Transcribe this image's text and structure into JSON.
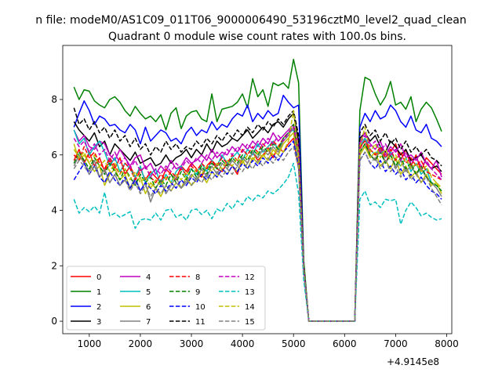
{
  "figure": {
    "suptitle": "n file: modeM0/AS1C09_011T06_9000006490_53196cztM0_level2_quad_clean",
    "title": "Quadrant 0 module wise count rates with 100.0s bins.",
    "offset_text": "+4.9145e8"
  },
  "chart_data": {
    "type": "line",
    "title": "Quadrant 0 module wise count rates with 100.0s bins.",
    "xlabel": "",
    "ylabel": "",
    "x_offset": 491450000,
    "xlim": [
      480,
      8100
    ],
    "ylim": [
      -0.45,
      9.95
    ],
    "xticks": [
      1000,
      2000,
      3000,
      4000,
      5000,
      6000,
      7000,
      8000
    ],
    "xtick_labels": [
      "1000",
      "2000",
      "3000",
      "4000",
      "5000",
      "6000",
      "7000",
      "8000"
    ],
    "yticks": [
      0,
      2,
      4,
      6,
      8
    ],
    "ytick_labels": [
      "0",
      "2",
      "4",
      "6",
      "8"
    ],
    "grid": false,
    "legend_placement": "lower-left",
    "legend_ncol": 4,
    "x": [
      700,
      800,
      900,
      1000,
      1100,
      1200,
      1300,
      1400,
      1500,
      1600,
      1700,
      1800,
      1900,
      2000,
      2100,
      2200,
      2300,
      2400,
      2500,
      2600,
      2700,
      2800,
      2900,
      3000,
      3100,
      3200,
      3300,
      3400,
      3500,
      3600,
      3700,
      3800,
      3900,
      4000,
      4100,
      4200,
      4300,
      4400,
      4500,
      4600,
      4700,
      4800,
      4900,
      5000,
      5100,
      5200,
      5300,
      6200,
      6300,
      6400,
      6500,
      6600,
      6700,
      6800,
      6900,
      7000,
      7100,
      7200,
      7300,
      7400,
      7500,
      7600,
      7700,
      7800,
      7900
    ],
    "series": [
      {
        "name": "0",
        "color": "#ff0000",
        "dash": "solid",
        "values": [
          5.8,
          6.2,
          5.7,
          6.1,
          5.6,
          5.9,
          5.4,
          5.8,
          5.5,
          5.9,
          5.3,
          5.6,
          5.2,
          5.5,
          5.1,
          5.4,
          5.2,
          5.0,
          5.5,
          5.3,
          5.1,
          5.6,
          5.4,
          5.7,
          5.5,
          5.2,
          5.6,
          5.8,
          5.5,
          5.4,
          5.7,
          5.6,
          5.3,
          5.9,
          5.7,
          6.1,
          5.8,
          6.0,
          6.2,
          5.9,
          6.3,
          6.1,
          6.4,
          6.6,
          5.5,
          1.8,
          0,
          0,
          6.2,
          6.6,
          6.0,
          5.8,
          6.3,
          5.7,
          6.1,
          6.4,
          5.8,
          6.2,
          5.6,
          6.0,
          5.4,
          5.9,
          5.7,
          5.5,
          5.3
        ]
      },
      {
        "name": "1",
        "color": "#008000",
        "dash": "solid",
        "values": [
          8.45,
          8.0,
          8.35,
          8.3,
          7.95,
          7.8,
          7.7,
          8.0,
          8.1,
          7.9,
          7.6,
          7.4,
          7.75,
          7.5,
          7.3,
          7.4,
          7.2,
          7.45,
          6.9,
          7.5,
          7.7,
          6.95,
          7.4,
          7.55,
          7.6,
          7.3,
          7.2,
          8.2,
          7.2,
          7.65,
          7.7,
          7.75,
          7.9,
          8.2,
          7.7,
          8.75,
          8.1,
          8.35,
          7.75,
          8.6,
          8.5,
          8.6,
          8.4,
          9.45,
          8.6,
          2.2,
          0,
          0,
          7.6,
          8.8,
          8.7,
          8.2,
          7.8,
          8.1,
          8.65,
          7.8,
          7.9,
          7.65,
          8.1,
          7.2,
          7.65,
          7.9,
          7.7,
          7.3,
          6.85
        ]
      },
      {
        "name": "2",
        "color": "#0000ff",
        "dash": "solid",
        "values": [
          7.0,
          7.5,
          7.95,
          7.6,
          7.1,
          7.4,
          7.3,
          7.05,
          7.1,
          6.9,
          6.8,
          7.1,
          6.9,
          6.4,
          7.0,
          6.5,
          6.7,
          6.9,
          6.8,
          6.5,
          6.6,
          6.4,
          6.8,
          7.0,
          6.7,
          6.9,
          6.8,
          7.2,
          6.9,
          7.1,
          7.0,
          7.3,
          7.5,
          7.4,
          7.8,
          7.2,
          7.5,
          7.3,
          7.6,
          7.4,
          7.5,
          8.15,
          7.9,
          7.7,
          7.8,
          2.0,
          0,
          0,
          7.0,
          7.5,
          7.2,
          7.6,
          7.3,
          7.4,
          7.8,
          7.6,
          7.2,
          7.0,
          7.4,
          6.9,
          6.8,
          7.1,
          6.6,
          6.5,
          6.3
        ]
      },
      {
        "name": "3",
        "color": "#000000",
        "dash": "solid",
        "values": [
          7.2,
          6.9,
          6.7,
          6.5,
          6.8,
          6.3,
          6.5,
          6.0,
          6.4,
          6.2,
          6.0,
          5.8,
          6.1,
          5.7,
          5.8,
          5.9,
          5.6,
          5.7,
          6.0,
          5.7,
          5.9,
          6.0,
          6.2,
          5.9,
          6.2,
          6.0,
          6.4,
          6.1,
          6.5,
          6.3,
          6.4,
          6.6,
          6.5,
          6.7,
          6.9,
          6.6,
          6.8,
          7.0,
          6.8,
          7.1,
          7.2,
          7.0,
          7.3,
          7.5,
          6.5,
          2.0,
          0,
          0,
          6.6,
          6.8,
          6.5,
          6.7,
          6.3,
          6.1,
          6.5,
          6.3,
          6.0,
          6.2,
          5.8,
          5.9,
          6.0,
          5.7,
          5.5,
          5.6,
          5.4
        ]
      },
      {
        "name": "4",
        "color": "#bf00bf",
        "dash": "solid",
        "values": [
          6.9,
          6.5,
          6.7,
          6.3,
          6.2,
          6.5,
          6.4,
          6.0,
          5.8,
          6.2,
          5.9,
          5.6,
          5.9,
          6.0,
          5.5,
          5.7,
          5.3,
          5.6,
          5.4,
          5.8,
          5.5,
          5.6,
          5.9,
          5.7,
          5.8,
          6.0,
          5.8,
          6.2,
          5.9,
          6.1,
          6.0,
          6.3,
          6.1,
          6.4,
          6.2,
          6.5,
          6.3,
          6.6,
          6.4,
          6.8,
          6.5,
          6.7,
          6.9,
          7.1,
          6.3,
          1.9,
          0,
          0,
          6.5,
          6.8,
          6.4,
          6.2,
          6.5,
          6.0,
          6.3,
          6.1,
          6.4,
          5.9,
          6.0,
          5.8,
          6.1,
          5.7,
          5.5,
          5.8,
          5.2
        ]
      },
      {
        "name": "5",
        "color": "#00bfbf",
        "dash": "solid",
        "values": [
          6.9,
          6.4,
          6.6,
          6.0,
          6.3,
          6.5,
          6.1,
          5.6,
          5.9,
          5.4,
          5.7,
          5.5,
          5.2,
          5.6,
          5.0,
          5.3,
          5.5,
          4.9,
          5.3,
          5.0,
          5.4,
          5.6,
          5.2,
          5.5,
          5.3,
          5.7,
          5.4,
          5.8,
          5.6,
          6.0,
          5.7,
          5.9,
          6.1,
          5.8,
          6.2,
          6.0,
          6.4,
          6.1,
          6.3,
          6.5,
          6.2,
          6.6,
          6.8,
          6.9,
          6.0,
          1.9,
          0,
          0,
          6.3,
          6.6,
          6.2,
          6.0,
          6.3,
          5.9,
          6.1,
          5.8,
          5.6,
          5.9,
          5.4,
          5.7,
          5.3,
          5.5,
          5.0,
          4.9,
          4.7
        ]
      },
      {
        "name": "6",
        "color": "#bfbf00",
        "dash": "solid",
        "values": [
          6.4,
          5.8,
          6.0,
          5.7,
          5.4,
          5.6,
          4.9,
          5.3,
          5.5,
          5.1,
          5.3,
          4.8,
          5.0,
          5.2,
          4.6,
          5.0,
          4.8,
          4.5,
          4.9,
          4.7,
          5.0,
          4.8,
          5.2,
          4.9,
          5.1,
          5.3,
          5.0,
          5.4,
          5.2,
          5.5,
          5.3,
          5.6,
          5.4,
          5.8,
          5.5,
          5.9,
          5.7,
          6.0,
          5.8,
          6.2,
          6.0,
          6.4,
          6.6,
          6.8,
          5.6,
          1.8,
          0,
          0,
          6.0,
          6.3,
          5.9,
          6.1,
          5.6,
          5.8,
          5.5,
          5.9,
          5.3,
          5.6,
          5.2,
          5.4,
          5.0,
          5.3,
          4.9,
          5.0,
          4.6
        ]
      },
      {
        "name": "7",
        "color": "#808080",
        "dash": "solid",
        "values": [
          5.6,
          6.0,
          5.7,
          5.4,
          5.8,
          5.2,
          5.5,
          5.0,
          5.3,
          4.9,
          5.1,
          4.8,
          5.2,
          4.7,
          5.0,
          4.3,
          4.8,
          5.1,
          4.6,
          4.9,
          5.2,
          4.8,
          5.0,
          5.3,
          5.1,
          5.5,
          5.2,
          5.6,
          5.3,
          5.7,
          5.5,
          5.8,
          5.6,
          5.9,
          5.7,
          6.1,
          5.9,
          6.2,
          6.0,
          6.3,
          6.1,
          6.5,
          6.7,
          7.0,
          5.9,
          1.8,
          0,
          0,
          6.1,
          6.4,
          6.0,
          5.8,
          6.2,
          5.7,
          6.0,
          5.5,
          5.8,
          5.4,
          5.6,
          5.3,
          5.5,
          5.2,
          5.0,
          4.8,
          4.5
        ]
      },
      {
        "name": "8",
        "color": "#ff0000",
        "dash": "dashed",
        "values": [
          6.0,
          5.8,
          6.3,
          5.9,
          6.1,
          5.7,
          5.5,
          5.9,
          5.6,
          5.3,
          5.7,
          5.5,
          5.1,
          5.4,
          5.6,
          5.2,
          5.0,
          5.3,
          5.1,
          5.4,
          5.2,
          5.5,
          5.3,
          5.6,
          5.4,
          5.7,
          5.5,
          5.8,
          5.6,
          5.9,
          5.7,
          6.0,
          5.8,
          6.2,
          6.0,
          6.3,
          6.1,
          6.4,
          6.2,
          6.5,
          6.3,
          6.6,
          6.8,
          7.0,
          6.1,
          1.9,
          0,
          0,
          6.3,
          6.5,
          6.2,
          6.0,
          6.3,
          5.9,
          6.2,
          5.8,
          6.1,
          5.7,
          5.9,
          5.6,
          5.8,
          5.4,
          5.3,
          5.2,
          5.1
        ]
      },
      {
        "name": "9",
        "color": "#008000",
        "dash": "dashed",
        "values": [
          5.7,
          6.1,
          5.8,
          5.5,
          5.9,
          5.6,
          5.3,
          5.7,
          5.4,
          5.1,
          5.5,
          5.2,
          4.9,
          5.3,
          5.0,
          5.2,
          4.8,
          5.1,
          4.9,
          5.3,
          5.0,
          5.4,
          5.1,
          5.5,
          5.2,
          5.6,
          5.3,
          5.7,
          5.5,
          5.8,
          5.6,
          5.9,
          5.7,
          6.0,
          5.8,
          6.2,
          6.0,
          6.3,
          6.1,
          6.4,
          6.2,
          6.6,
          6.8,
          7.1,
          6.0,
          1.9,
          0,
          0,
          6.1,
          6.4,
          6.0,
          5.8,
          6.1,
          5.7,
          6.0,
          5.6,
          5.9,
          5.5,
          5.7,
          5.3,
          5.6,
          5.2,
          5.0,
          4.9,
          4.7
        ]
      },
      {
        "name": "10",
        "color": "#0000ff",
        "dash": "dashed",
        "values": [
          5.1,
          5.4,
          5.7,
          5.3,
          5.6,
          5.2,
          5.0,
          5.4,
          5.1,
          4.9,
          5.2,
          4.8,
          5.1,
          4.7,
          5.0,
          4.8,
          4.6,
          4.9,
          4.7,
          5.0,
          4.8,
          5.1,
          4.9,
          5.2,
          5.0,
          5.3,
          5.1,
          5.4,
          5.2,
          5.5,
          5.3,
          5.6,
          5.4,
          5.7,
          5.5,
          5.8,
          5.6,
          5.9,
          5.7,
          6.0,
          5.8,
          6.1,
          6.3,
          6.5,
          5.6,
          1.8,
          0,
          0,
          5.8,
          6.1,
          5.7,
          5.5,
          5.8,
          5.4,
          5.6,
          5.3,
          5.5,
          5.1,
          5.3,
          5.0,
          5.2,
          4.9,
          4.7,
          4.6,
          4.4
        ]
      },
      {
        "name": "11",
        "color": "#000000",
        "dash": "dashed",
        "values": [
          7.7,
          7.1,
          7.3,
          6.9,
          7.2,
          6.8,
          7.0,
          6.6,
          6.9,
          6.5,
          6.7,
          6.3,
          6.6,
          6.2,
          6.4,
          6.0,
          6.3,
          6.1,
          6.5,
          6.2,
          6.4,
          6.1,
          6.3,
          6.2,
          6.5,
          6.3,
          6.6,
          6.4,
          6.7,
          6.5,
          6.8,
          6.6,
          6.9,
          6.7,
          7.0,
          6.8,
          7.1,
          6.9,
          7.2,
          7.0,
          7.3,
          7.1,
          7.4,
          7.6,
          6.7,
          2.0,
          0,
          0,
          6.8,
          7.1,
          6.7,
          6.9,
          6.5,
          6.8,
          6.4,
          6.6,
          6.2,
          6.5,
          6.1,
          6.3,
          6.0,
          6.2,
          5.9,
          5.8,
          5.6
        ]
      },
      {
        "name": "12",
        "color": "#bf00bf",
        "dash": "dashed",
        "values": [
          6.6,
          6.3,
          6.5,
          6.1,
          6.4,
          6.0,
          6.2,
          5.8,
          6.1,
          5.7,
          5.9,
          5.5,
          5.8,
          5.4,
          5.6,
          5.2,
          5.5,
          5.3,
          5.6,
          5.4,
          5.7,
          5.5,
          5.8,
          5.6,
          5.9,
          5.7,
          6.0,
          5.8,
          6.1,
          5.9,
          6.2,
          6.0,
          6.3,
          6.1,
          6.4,
          6.2,
          6.5,
          6.3,
          6.6,
          6.4,
          6.7,
          6.5,
          6.8,
          7.0,
          6.2,
          1.9,
          0,
          0,
          6.4,
          6.7,
          6.3,
          6.5,
          6.1,
          6.4,
          6.0,
          6.2,
          5.8,
          6.1,
          5.7,
          5.9,
          5.6,
          5.8,
          5.5,
          5.3,
          5.1
        ]
      },
      {
        "name": "13",
        "color": "#00bfbf",
        "dash": "dashed",
        "values": [
          4.4,
          3.9,
          4.1,
          3.95,
          4.15,
          3.9,
          4.65,
          3.8,
          3.9,
          3.75,
          3.85,
          3.95,
          3.35,
          3.65,
          3.7,
          3.65,
          3.9,
          3.65,
          4.0,
          4.05,
          3.75,
          3.85,
          3.65,
          4.0,
          4.05,
          3.85,
          4.0,
          3.7,
          4.05,
          3.95,
          4.25,
          4.05,
          4.35,
          4.2,
          4.5,
          4.35,
          4.55,
          4.45,
          4.7,
          4.6,
          4.75,
          4.95,
          5.2,
          5.7,
          4.6,
          1.5,
          0,
          0,
          4.4,
          4.7,
          4.2,
          4.3,
          4.1,
          4.4,
          4.35,
          4.4,
          3.5,
          4.0,
          4.3,
          4.1,
          3.8,
          3.9,
          3.75,
          3.65,
          3.7
        ]
      },
      {
        "name": "14",
        "color": "#bfbf00",
        "dash": "dashed",
        "values": [
          6.2,
          5.9,
          6.1,
          5.7,
          6.0,
          5.6,
          5.8,
          5.4,
          5.7,
          5.3,
          5.5,
          5.1,
          5.4,
          5.0,
          5.2,
          4.8,
          5.1,
          4.9,
          5.2,
          5.0,
          5.3,
          5.1,
          5.4,
          5.2,
          5.5,
          5.3,
          5.6,
          5.4,
          5.7,
          5.5,
          5.8,
          5.6,
          5.9,
          5.7,
          6.0,
          5.8,
          6.1,
          5.9,
          6.2,
          6.0,
          6.3,
          6.1,
          6.5,
          7.6,
          6.0,
          1.9,
          0,
          0,
          6.3,
          7.0,
          6.1,
          6.4,
          5.9,
          6.2,
          5.8,
          6.0,
          5.6,
          5.9,
          5.5,
          5.7,
          5.4,
          5.6,
          5.2,
          5.0,
          4.8
        ]
      },
      {
        "name": "15",
        "color": "#808080",
        "dash": "dashed",
        "values": [
          5.5,
          5.8,
          5.6,
          5.3,
          5.6,
          5.2,
          5.4,
          5.0,
          5.3,
          4.9,
          5.1,
          4.7,
          5.0,
          4.6,
          4.9,
          4.5,
          4.8,
          4.6,
          4.9,
          4.7,
          5.0,
          4.8,
          5.1,
          4.9,
          5.2,
          5.0,
          5.3,
          5.1,
          5.4,
          5.2,
          5.5,
          5.3,
          5.6,
          5.4,
          5.7,
          5.5,
          5.8,
          5.6,
          5.9,
          5.7,
          6.0,
          5.8,
          6.1,
          6.3,
          5.5,
          1.8,
          0,
          0,
          5.8,
          6.1,
          5.7,
          5.9,
          5.5,
          5.8,
          5.4,
          5.6,
          5.2,
          5.5,
          5.1,
          5.3,
          5.0,
          5.2,
          4.8,
          4.5,
          4.2
        ]
      }
    ]
  }
}
